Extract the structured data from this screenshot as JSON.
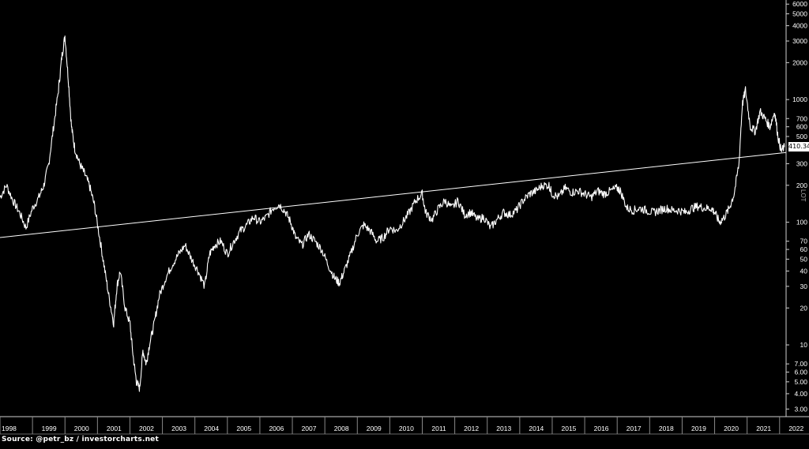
{
  "chart_data": {
    "type": "line",
    "title": "",
    "xlabel": "",
    "ylabel": "",
    "y_scale": "log",
    "ylim": [
      2.6,
      6200
    ],
    "xlim": [
      1998.0,
      2022.2
    ],
    "grid": false,
    "background_color": "#000000",
    "line_color": "#ffffff",
    "series": [
      {
        "x": [
          1998.0,
          1998.2,
          1998.4,
          1998.6,
          1998.8,
          1999.0,
          1999.2,
          1999.35,
          1999.5,
          1999.65,
          1999.8,
          1999.9,
          2000.0,
          2000.1,
          2000.2,
          2000.3,
          2000.45,
          2000.6,
          2000.75,
          2000.9,
          2001.05,
          2001.2,
          2001.35,
          2001.5,
          2001.6,
          2001.7,
          2001.85,
          2002.0,
          2002.1,
          2002.2,
          2002.3,
          2002.4,
          2002.5,
          2002.6,
          2002.75,
          2002.9,
          2003.1,
          2003.3,
          2003.5,
          2003.7,
          2003.9,
          2004.1,
          2004.3,
          2004.45,
          2004.6,
          2004.8,
          2005.0,
          2005.2,
          2005.4,
          2005.6,
          2005.8,
          2006.0,
          2006.2,
          2006.4,
          2006.6,
          2006.8,
          2006.95,
          2007.1,
          2007.3,
          2007.5,
          2007.7,
          2007.9,
          2008.1,
          2008.3,
          2008.45,
          2008.6,
          2008.8,
          2009.0,
          2009.2,
          2009.4,
          2009.6,
          2009.8,
          2010.0,
          2010.2,
          2010.4,
          2010.6,
          2010.8,
          2011.0,
          2011.1,
          2011.3,
          2011.5,
          2011.7,
          2011.9,
          2012.1,
          2012.3,
          2012.5,
          2012.7,
          2012.9,
          2013.1,
          2013.3,
          2013.5,
          2013.7,
          2013.9,
          2014.1,
          2014.3,
          2014.5,
          2014.7,
          2014.9,
          2015.0,
          2015.2,
          2015.4,
          2015.6,
          2015.8,
          2016.0,
          2016.2,
          2016.4,
          2016.6,
          2016.8,
          2017.0,
          2017.1,
          2017.3,
          2017.5,
          2017.7,
          2017.9,
          2018.1,
          2018.3,
          2018.5,
          2018.7,
          2018.9,
          2019.1,
          2019.3,
          2019.5,
          2019.7,
          2019.9,
          2020.0,
          2020.15,
          2020.3,
          2020.45,
          2020.6,
          2020.75,
          2020.85,
          2020.95,
          2021.1,
          2021.25,
          2021.4,
          2021.55,
          2021.7,
          2021.85,
          2021.95,
          2022.05,
          2022.15
        ],
        "y": [
          160,
          200,
          150,
          120,
          90,
          130,
          160,
          200,
          300,
          600,
          1200,
          2200,
          3300,
          1500,
          600,
          400,
          300,
          250,
          200,
          140,
          80,
          45,
          25,
          15,
          30,
          40,
          20,
          15,
          8,
          5,
          4.4,
          9,
          7,
          10,
          15,
          25,
          35,
          45,
          55,
          65,
          50,
          40,
          30,
          55,
          65,
          70,
          55,
          70,
          85,
          95,
          110,
          100,
          110,
          130,
          140,
          120,
          100,
          75,
          65,
          80,
          70,
          60,
          45,
          35,
          32,
          40,
          55,
          80,
          95,
          85,
          70,
          75,
          90,
          85,
          100,
          120,
          150,
          170,
          120,
          105,
          130,
          150,
          130,
          150,
          115,
          120,
          105,
          110,
          90,
          105,
          120,
          115,
          125,
          150,
          170,
          180,
          200,
          200,
          170,
          160,
          190,
          175,
          180,
          170,
          160,
          180,
          170,
          180,
          190,
          180,
          130,
          125,
          130,
          125,
          120,
          125,
          130,
          125,
          125,
          120,
          130,
          135,
          130,
          130,
          120,
          100,
          110,
          130,
          170,
          300,
          900,
          1200,
          600,
          550,
          800,
          700,
          600,
          800,
          500,
          380,
          410
        ]
      }
    ],
    "trendline": {
      "x": [
        1998.0,
        2022.2
      ],
      "y": [
        75,
        370
      ]
    },
    "y_ticks": [
      "6000",
      "5000",
      "4000",
      "3000",
      "2000",
      "1000",
      "700",
      "600",
      "500",
      "300",
      "200",
      "100",
      "70",
      "60",
      "50",
      "40",
      "30",
      "20",
      "10",
      "7.00",
      "6.00",
      "5.00",
      "4.00",
      "3.00"
    ],
    "x_ticks": [
      "1998",
      "1999",
      "2000",
      "2001",
      "2002",
      "2003",
      "2004",
      "2005",
      "2006",
      "2007",
      "2008",
      "2009",
      "2010",
      "2011",
      "2012",
      "2013",
      "2014",
      "2015",
      "2016",
      "2017",
      "2018",
      "2019",
      "2020",
      "2021",
      "2022"
    ],
    "last_price_label": "410.34",
    "axis_side_label": "LOT"
  },
  "footer": {
    "source": "Source: @petr_bz / investorcharts.net"
  }
}
